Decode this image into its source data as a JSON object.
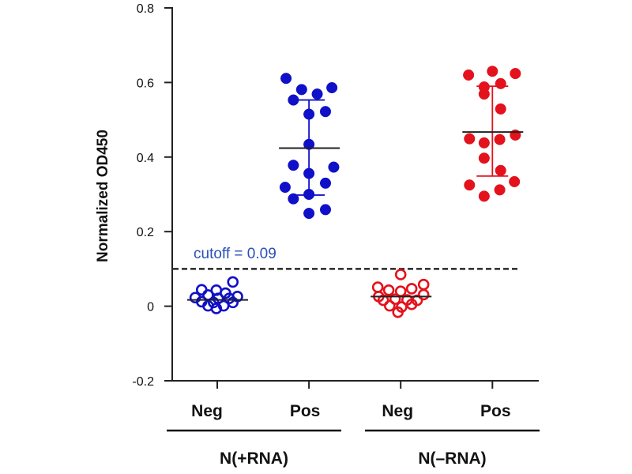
{
  "chart_data": {
    "type": "scatter",
    "title": "",
    "xlabel": "",
    "ylabel": "Normalized OD450",
    "ylim": [
      -0.2,
      0.8
    ],
    "yticks": [
      {
        "value": 0.8,
        "label": "0.8"
      },
      {
        "value": 0.6,
        "label": "0.6"
      },
      {
        "value": 0.4,
        "label": "0.4"
      },
      {
        "value": 0.2,
        "label": "0.2"
      },
      {
        "value": 0,
        "label": "0"
      },
      {
        "value": -0.2,
        "label": "-0.2"
      }
    ],
    "categories": [
      "Neg",
      "Pos",
      "Neg",
      "Pos"
    ],
    "groups": [
      {
        "label": "N(+RNA)",
        "categories": [
          1,
          2
        ]
      },
      {
        "label": "N(–RNA)",
        "categories": [
          3,
          4
        ]
      }
    ],
    "cutoff": {
      "value": 0.1,
      "label": "cutoff = 0.09",
      "color": "#2a4fb8"
    },
    "series": [
      {
        "name": "N(+RNA) Neg",
        "category": 1,
        "color": "#1010c8",
        "filled": false,
        "mean": 0.017,
        "sd_upper": null,
        "sd_lower": null,
        "points": [
          {
            "x": 1.17,
            "y": 0.065
          },
          {
            "x": 0.83,
            "y": 0.044
          },
          {
            "x": 0.99,
            "y": 0.043
          },
          {
            "x": 1.09,
            "y": 0.035
          },
          {
            "x": 0.9,
            "y": 0.03
          },
          {
            "x": 1.22,
            "y": 0.026
          },
          {
            "x": 0.76,
            "y": 0.023
          },
          {
            "x": 1.01,
            "y": 0.021
          },
          {
            "x": 1.13,
            "y": 0.021
          },
          {
            "x": 0.83,
            "y": 0.012
          },
          {
            "x": 0.96,
            "y": 0.01
          },
          {
            "x": 1.17,
            "y": 0.01
          },
          {
            "x": 0.9,
            "y": 0.001
          },
          {
            "x": 1.07,
            "y": 0.001
          },
          {
            "x": 0.99,
            "y": -0.006
          }
        ]
      },
      {
        "name": "N(+RNA) Pos",
        "category": 2,
        "color": "#1010c8",
        "filled": true,
        "mean": 0.424,
        "sd_upper": 0.553,
        "sd_lower": 0.298,
        "points": [
          {
            "x": 1.75,
            "y": 0.611
          },
          {
            "x": 1.92,
            "y": 0.581
          },
          {
            "x": 2.09,
            "y": 0.569
          },
          {
            "x": 2.25,
            "y": 0.586
          },
          {
            "x": 1.83,
            "y": 0.553
          },
          {
            "x": 2.0,
            "y": 0.515
          },
          {
            "x": 2.18,
            "y": 0.522
          },
          {
            "x": 2.0,
            "y": 0.434
          },
          {
            "x": 1.83,
            "y": 0.378
          },
          {
            "x": 2.27,
            "y": 0.373
          },
          {
            "x": 2.0,
            "y": 0.356
          },
          {
            "x": 1.74,
            "y": 0.319
          },
          {
            "x": 2.18,
            "y": 0.33
          },
          {
            "x": 1.83,
            "y": 0.288
          },
          {
            "x": 2.0,
            "y": 0.3
          },
          {
            "x": 2.0,
            "y": 0.249
          },
          {
            "x": 2.18,
            "y": 0.259
          }
        ]
      },
      {
        "name": "N(–RNA) Neg",
        "category": 3,
        "color": "#e3121c",
        "filled": false,
        "mean": 0.026,
        "sd_upper": null,
        "sd_lower": null,
        "points": [
          {
            "x": 3.0,
            "y": 0.085
          },
          {
            "x": 2.75,
            "y": 0.051
          },
          {
            "x": 2.87,
            "y": 0.043
          },
          {
            "x": 3.0,
            "y": 0.04
          },
          {
            "x": 3.12,
            "y": 0.047
          },
          {
            "x": 3.25,
            "y": 0.058
          },
          {
            "x": 2.76,
            "y": 0.026
          },
          {
            "x": 3.25,
            "y": 0.031
          },
          {
            "x": 2.81,
            "y": 0.016
          },
          {
            "x": 2.94,
            "y": 0.019
          },
          {
            "x": 3.07,
            "y": 0.017
          },
          {
            "x": 3.18,
            "y": 0.016
          },
          {
            "x": 2.88,
            "y": 0.001
          },
          {
            "x": 3.01,
            "y": -0.002
          },
          {
            "x": 3.12,
            "y": 0.005
          },
          {
            "x": 2.97,
            "y": -0.016
          }
        ]
      },
      {
        "name": "N(–RNA) Pos",
        "category": 4,
        "color": "#e3121c",
        "filled": true,
        "mean": 0.467,
        "sd_upper": 0.59,
        "sd_lower": 0.349,
        "points": [
          {
            "x": 3.74,
            "y": 0.62
          },
          {
            "x": 4.0,
            "y": 0.63
          },
          {
            "x": 4.25,
            "y": 0.624
          },
          {
            "x": 3.91,
            "y": 0.588
          },
          {
            "x": 4.09,
            "y": 0.597
          },
          {
            "x": 3.91,
            "y": 0.569
          },
          {
            "x": 4.09,
            "y": 0.529
          },
          {
            "x": 3.75,
            "y": 0.449
          },
          {
            "x": 3.91,
            "y": 0.438
          },
          {
            "x": 4.08,
            "y": 0.447
          },
          {
            "x": 4.25,
            "y": 0.459
          },
          {
            "x": 3.91,
            "y": 0.397
          },
          {
            "x": 4.09,
            "y": 0.364
          },
          {
            "x": 3.75,
            "y": 0.325
          },
          {
            "x": 4.24,
            "y": 0.334
          },
          {
            "x": 4.08,
            "y": 0.312
          },
          {
            "x": 3.91,
            "y": 0.295
          }
        ]
      }
    ],
    "grid": false,
    "legend": "none"
  }
}
